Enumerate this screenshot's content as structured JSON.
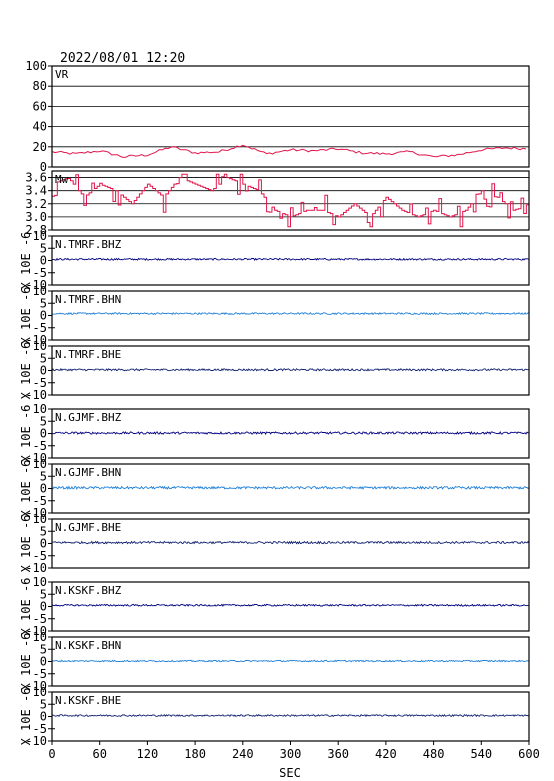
{
  "header": {
    "datetime": "2022/08/01 12:20"
  },
  "colors": {
    "vr": "#e0154a",
    "mw": "#e0154a",
    "dark_blue": "#000080",
    "light_blue": "#1e7fd8",
    "navy": "#102070",
    "frame": "#000000"
  },
  "chart_data": [
    {
      "type": "line",
      "panel": "vr",
      "label": "VR",
      "ylim": [
        0,
        100
      ],
      "yticks": [
        0,
        20,
        40,
        60,
        80,
        100
      ],
      "grid": true,
      "x_range": [
        0,
        600
      ],
      "series": [
        {
          "x": [
            0,
            30,
            60,
            90,
            120,
            150,
            180,
            210,
            240,
            270,
            300,
            330,
            360,
            390,
            420,
            450,
            480,
            510,
            540,
            570,
            600
          ],
          "values": [
            15,
            13,
            16,
            10,
            12,
            20,
            14,
            15,
            22,
            13,
            17,
            16,
            18,
            14,
            13,
            15,
            10,
            12,
            17,
            19,
            18
          ]
        }
      ]
    },
    {
      "type": "line",
      "panel": "mw",
      "label": "Mw",
      "ylim": [
        2.8,
        3.7
      ],
      "yticks": [
        2.8,
        3.0,
        3.2,
        3.4,
        3.6
      ],
      "grid": true,
      "x_range": [
        0,
        600
      ],
      "series": [
        {
          "x": [
            0,
            20,
            40,
            60,
            80,
            100,
            120,
            140,
            160,
            180,
            200,
            220,
            240,
            260,
            280,
            300,
            320,
            340,
            360,
            380,
            400,
            420,
            440,
            460,
            480,
            500,
            520,
            540,
            560,
            580,
            600
          ],
          "values": [
            3.5,
            3.6,
            3.3,
            3.5,
            3.4,
            3.2,
            3.5,
            3.3,
            3.6,
            3.5,
            3.4,
            3.6,
            3.5,
            3.4,
            3.1,
            3.0,
            3.1,
            3.1,
            3.0,
            3.2,
            3.0,
            3.3,
            3.1,
            3.0,
            3.1,
            3.0,
            3.1,
            3.4,
            3.3,
            3.1,
            3.2
          ]
        }
      ]
    },
    {
      "type": "line",
      "panel": "seismo",
      "label": "N.TMRF.BHZ",
      "color": "dark_blue",
      "ylim": [
        -10,
        10
      ],
      "yticks": [
        -10,
        -5,
        0,
        5,
        10
      ],
      "ylabel": "X 10E -6",
      "baseline": 0.5,
      "noise": 0.35
    },
    {
      "type": "line",
      "panel": "seismo",
      "label": "N.TMRF.BHN",
      "color": "light_blue",
      "ylim": [
        -10,
        10
      ],
      "yticks": [
        -10,
        -5,
        0,
        5,
        10
      ],
      "ylabel": "X 10E -6",
      "baseline": 0.8,
      "noise": 0.35
    },
    {
      "type": "line",
      "panel": "seismo",
      "label": "N.TMRF.BHE",
      "color": "navy",
      "ylim": [
        -10,
        10
      ],
      "yticks": [
        -10,
        -5,
        0,
        5,
        10
      ],
      "ylabel": "X 10E -6",
      "baseline": 0.3,
      "noise": 0.4
    },
    {
      "type": "line",
      "panel": "seismo",
      "label": "N.GJMF.BHZ",
      "color": "dark_blue",
      "ylim": [
        -10,
        10
      ],
      "yticks": [
        -10,
        -5,
        0,
        5,
        10
      ],
      "ylabel": "X 10E -6",
      "baseline": 0.2,
      "noise": 0.45
    },
    {
      "type": "line",
      "panel": "seismo",
      "label": "N.GJMF.BHN",
      "color": "light_blue",
      "ylim": [
        -10,
        10
      ],
      "yticks": [
        -10,
        -5,
        0,
        5,
        10
      ],
      "ylabel": "X 10E -6",
      "baseline": 0.3,
      "noise": 0.5
    },
    {
      "type": "line",
      "panel": "seismo",
      "label": "N.GJMF.BHE",
      "color": "navy",
      "ylim": [
        -10,
        10
      ],
      "yticks": [
        -10,
        -5,
        0,
        5,
        10
      ],
      "ylabel": "X 10E -6",
      "baseline": 0.4,
      "noise": 0.45
    },
    {
      "type": "line",
      "panel": "seismo",
      "label": "N.KSKF.BHZ",
      "color": "dark_blue",
      "ylim": [
        -10,
        10
      ],
      "yticks": [
        -10,
        -5,
        0,
        5,
        10
      ],
      "ylabel": "X 10E -6",
      "baseline": 0.5,
      "noise": 0.35
    },
    {
      "type": "line",
      "panel": "seismo",
      "label": "N.KSKF.BHN",
      "color": "light_blue",
      "ylim": [
        -10,
        10
      ],
      "yticks": [
        -10,
        -5,
        0,
        5,
        10
      ],
      "ylabel": "X 10E -6",
      "baseline": 0.2,
      "noise": 0.3
    },
    {
      "type": "line",
      "panel": "seismo",
      "label": "N.KSKF.BHE",
      "color": "navy",
      "ylim": [
        -10,
        10
      ],
      "yticks": [
        -10,
        -5,
        0,
        5,
        10
      ],
      "ylabel": "X 10E -6",
      "baseline": 0.4,
      "noise": 0.35
    }
  ],
  "x_axis": {
    "label": "SEC",
    "range": [
      0,
      600
    ],
    "ticks": [
      0,
      60,
      120,
      180,
      240,
      300,
      360,
      420,
      480,
      540,
      600
    ]
  }
}
